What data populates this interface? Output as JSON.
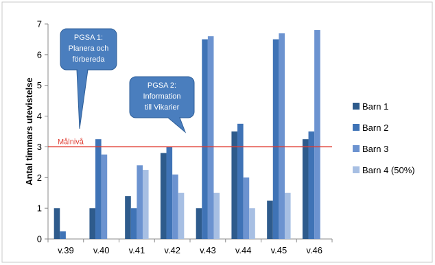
{
  "chart_data": {
    "type": "bar",
    "title": "",
    "xlabel": "",
    "ylabel": "Antal timmars utevistelse",
    "ylim": [
      0,
      7
    ],
    "yticks": [
      0,
      1,
      2,
      3,
      4,
      5,
      6,
      7
    ],
    "grid": false,
    "legend_position": "right",
    "categories": [
      "v.39",
      "v.40",
      "v.41",
      "v.42",
      "v.43",
      "v.44",
      "v.45",
      "v.46"
    ],
    "series": [
      {
        "name": "Barn 1",
        "color": "#2e5b8c",
        "values": [
          1,
          1,
          1.4,
          2.8,
          1,
          3.5,
          1.25,
          3.25
        ]
      },
      {
        "name": "Barn 2",
        "color": "#3f73b6",
        "values": [
          0.25,
          3.25,
          1,
          3,
          6.5,
          3.75,
          6.5,
          3.5
        ]
      },
      {
        "name": "Barn 3",
        "color": "#6c93d0",
        "values": [
          0,
          2.75,
          2.4,
          2.1,
          6.6,
          2,
          6.7,
          6.8
        ]
      },
      {
        "name": "Barn 4 (50%)",
        "color": "#a7bfe3",
        "values": [
          0,
          0,
          2.25,
          1.5,
          1.5,
          1,
          1.5,
          0
        ]
      }
    ],
    "target_line": {
      "label": "Målnivå",
      "value": 3,
      "color": "#e03c31"
    },
    "annotations": [
      {
        "lines": [
          "PGSA 1:",
          "Planera och",
          "förbereda"
        ]
      },
      {
        "lines": [
          "PGSA 2:",
          "Information",
          "till Vikarier"
        ]
      }
    ]
  }
}
